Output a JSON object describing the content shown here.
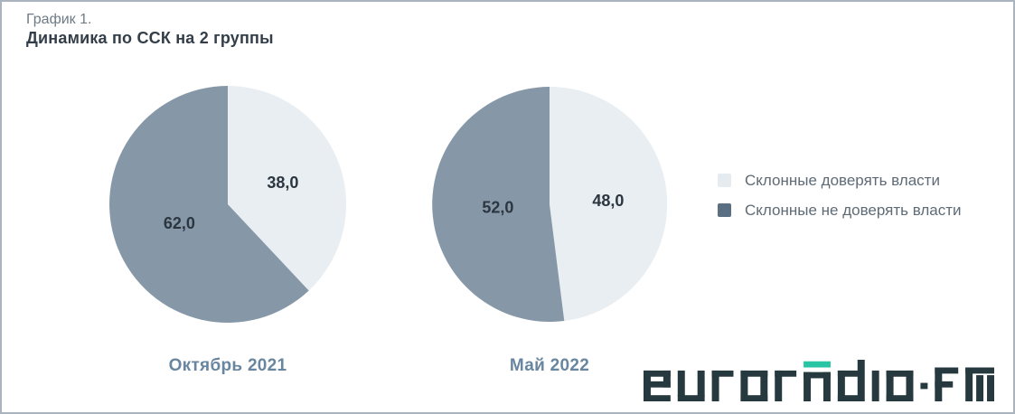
{
  "header": {
    "label": "График 1.",
    "title": "Динамика по ССК на 2 группы"
  },
  "chart_data": [
    {
      "type": "pie",
      "category": "Октябрь 2021",
      "slices": [
        {
          "label": "Склонные доверять власти",
          "value": 38.0,
          "display": "38,0"
        },
        {
          "label": "Склонные не доверять власти",
          "value": 62.0,
          "display": "62,0"
        }
      ]
    },
    {
      "type": "pie",
      "category": "Май 2022",
      "slices": [
        {
          "label": "Склонные доверять власти",
          "value": 48.0,
          "display": "48,0"
        },
        {
          "label": "Склонные не доверять власти",
          "value": 52.0,
          "display": "52,0"
        }
      ]
    }
  ],
  "legend": {
    "items": [
      {
        "label": "Склонные доверять власти",
        "color": "#e6ebef"
      },
      {
        "label": "Склонные не доверять власти",
        "color": "#5a7082"
      }
    ]
  },
  "colors": {
    "slice_colors": [
      "#e9eef2",
      "#8698a8"
    ],
    "value_label": "#2c3640",
    "category_label": "#68869f",
    "legend_text": "#5e6b76",
    "border": "#aab4be"
  },
  "logo": {
    "text": "euroradio·fm",
    "color": "#25393f",
    "accent_color": "#27c5a3"
  }
}
